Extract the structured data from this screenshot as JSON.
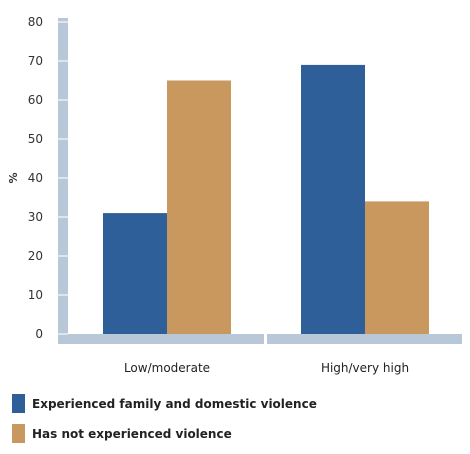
{
  "chart_data": {
    "type": "bar",
    "ylabel": "%",
    "ylim": [
      0,
      80
    ],
    "yticks": [
      0,
      10,
      20,
      30,
      40,
      50,
      60,
      70,
      80
    ],
    "categories": [
      "Low/moderate",
      "High/very high"
    ],
    "series": [
      {
        "name": "Experienced family and domestic violence",
        "color": "#2e5f98",
        "values": [
          31,
          69
        ]
      },
      {
        "name": "Has not experienced violence",
        "color": "#c9985e",
        "values": [
          65,
          34
        ]
      }
    ],
    "grid": false,
    "legend_position": "bottom-left"
  }
}
